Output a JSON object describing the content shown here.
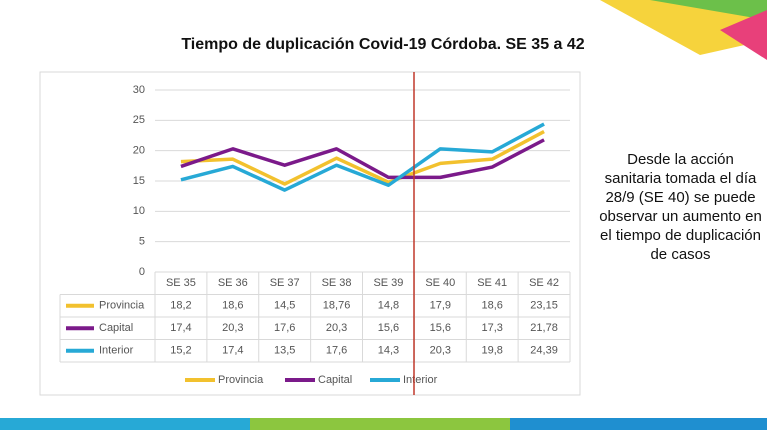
{
  "chart_data": {
    "type": "line",
    "title": "Tiempo de duplicación Covid-19 Córdoba. SE 35 a 42",
    "annotation": "Desde la acción sanitaria tomada el día 28/9 (SE 40) se puede observar un aumento en el tiempo de duplicación de casos",
    "categories": [
      "SE 35",
      "SE 36",
      "SE 37",
      "SE 38",
      "SE 39",
      "SE 40",
      "SE 41",
      "SE 42"
    ],
    "series": [
      {
        "name": "Provincia",
        "color": "#f2c12e",
        "values": [
          18.2,
          18.6,
          14.5,
          18.76,
          14.8,
          17.9,
          18.6,
          23.15
        ],
        "value_labels": [
          "18,2",
          "18,6",
          "14,5",
          "18,76",
          "14,8",
          "17,9",
          "18,6",
          "23,15"
        ]
      },
      {
        "name": "Capital",
        "color": "#7b1a8a",
        "values": [
          17.4,
          20.3,
          17.6,
          20.3,
          15.6,
          15.6,
          17.3,
          21.78
        ],
        "value_labels": [
          "17,4",
          "20,3",
          "17,6",
          "20,3",
          "15,6",
          "15,6",
          "17,3",
          "21,78"
        ]
      },
      {
        "name": "Interior",
        "color": "#27a9d6",
        "values": [
          15.2,
          17.4,
          13.5,
          17.6,
          14.3,
          20.3,
          19.8,
          24.39
        ],
        "value_labels": [
          "15,2",
          "17,4",
          "13,5",
          "17,6",
          "14,3",
          "20,3",
          "19,8",
          "24,39"
        ]
      }
    ],
    "ylim": [
      0,
      30
    ],
    "yticks": [
      0,
      5,
      10,
      15,
      20,
      25,
      30
    ],
    "grid": true
  }
}
